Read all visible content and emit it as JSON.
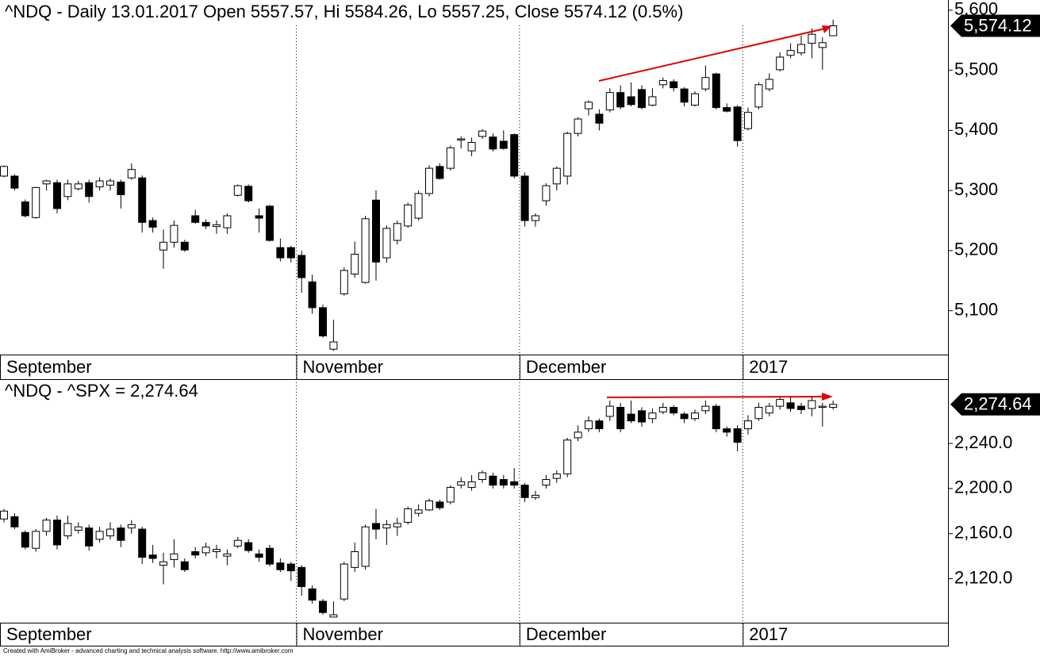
{
  "chart_data": [
    {
      "type": "candlestick",
      "title": "^NDQ - Daily 13.01.2017 Open 5557.57, Hi 5584.26, Lo 5557.25, Close 5574.12 (0.5%)",
      "last_label": "5,574.12",
      "categories": [
        "September",
        null,
        null,
        null,
        null,
        null,
        null,
        null,
        null,
        null,
        null,
        null,
        null,
        null,
        null,
        null,
        null,
        null,
        null,
        null,
        null,
        null,
        null,
        null,
        null,
        null,
        null,
        null,
        "November",
        null,
        null,
        null,
        null,
        null,
        null,
        null,
        null,
        null,
        null,
        null,
        null,
        null,
        null,
        null,
        null,
        null,
        null,
        null,
        null,
        "December",
        null,
        null,
        null,
        null,
        null,
        null,
        null,
        null,
        null,
        null,
        null,
        null,
        null,
        null,
        null,
        null,
        null,
        null,
        null,
        null,
        "2017",
        null,
        null,
        null,
        null,
        null,
        null,
        null,
        null
      ],
      "open": [
        5324,
        5324,
        5281,
        5255,
        5311,
        5313,
        5290,
        5303,
        5313,
        5306,
        5309,
        5314,
        5321,
        5321,
        5250,
        5201,
        5214,
        5214,
        5258,
        5247,
        5240,
        5238,
        5292,
        5307,
        5258,
        5274,
        5205,
        5205,
        5192,
        5148,
        5105,
        5036,
        5128,
        5161,
        5147,
        5284,
        5188,
        5217,
        5241,
        5254,
        5295,
        5340,
        5337,
        5384,
        5366,
        5390,
        5389,
        5382,
        5393,
        5324,
        5250,
        5283,
        5311,
        5324,
        5395,
        5436,
        5427,
        5434,
        5463,
        5456,
        5468,
        5442,
        5476,
        5481,
        5469,
        5442,
        5469,
        5494,
        5438,
        5439,
        5403,
        5439,
        5469,
        5501,
        5525,
        5529,
        5545,
        5538,
        5557.57
      ],
      "high": [
        5342,
        5327,
        5285,
        5306,
        5318,
        5318,
        5318,
        5316,
        5318,
        5322,
        5320,
        5318,
        5345,
        5325,
        5255,
        5235,
        5250,
        5218,
        5268,
        5252,
        5250,
        5262,
        5310,
        5310,
        5270,
        5276,
        5220,
        5208,
        5200,
        5160,
        5110,
        5085,
        5172,
        5215,
        5258,
        5300,
        5242,
        5250,
        5280,
        5300,
        5342,
        5345,
        5375,
        5390,
        5388,
        5402,
        5395,
        5400,
        5395,
        5330,
        5262,
        5312,
        5340,
        5398,
        5422,
        5450,
        5435,
        5470,
        5475,
        5480,
        5475,
        5470,
        5488,
        5485,
        5472,
        5465,
        5508,
        5496,
        5445,
        5442,
        5438,
        5480,
        5495,
        5530,
        5545,
        5558,
        5570,
        5555,
        5584.26
      ],
      "low": [
        5322,
        5300,
        5255,
        5253,
        5300,
        5262,
        5284,
        5300,
        5280,
        5300,
        5300,
        5270,
        5318,
        5230,
        5230,
        5170,
        5205,
        5198,
        5245,
        5236,
        5228,
        5228,
        5290,
        5280,
        5230,
        5215,
        5182,
        5180,
        5130,
        5095,
        5055,
        5033,
        5125,
        5155,
        5145,
        5150,
        5180,
        5210,
        5238,
        5250,
        5290,
        5318,
        5333,
        5370,
        5357,
        5386,
        5365,
        5368,
        5320,
        5240,
        5240,
        5275,
        5300,
        5310,
        5390,
        5425,
        5400,
        5430,
        5435,
        5440,
        5435,
        5440,
        5470,
        5465,
        5440,
        5440,
        5465,
        5435,
        5430,
        5373,
        5400,
        5435,
        5465,
        5498,
        5520,
        5525,
        5520,
        5501,
        5557.25
      ],
      "close": [
        5340,
        5304,
        5258,
        5305,
        5316,
        5270,
        5311,
        5311,
        5290,
        5316,
        5316,
        5293,
        5335,
        5247,
        5239,
        5214,
        5242,
        5201,
        5247,
        5241,
        5243,
        5258,
        5308,
        5283,
        5254,
        5217,
        5188,
        5188,
        5155,
        5105,
        5058,
        5048,
        5167,
        5194,
        5253,
        5181,
        5237,
        5245,
        5276,
        5295,
        5337,
        5320,
        5371,
        5386,
        5380,
        5399,
        5369,
        5370,
        5324,
        5250,
        5258,
        5308,
        5337,
        5395,
        5419,
        5447,
        5412,
        5463,
        5439,
        5443,
        5438,
        5456,
        5483,
        5471,
        5447,
        5461,
        5488,
        5438,
        5432,
        5383,
        5430,
        5476,
        5485,
        5522,
        5533,
        5543,
        5560,
        5546,
        5574.12
      ],
      "up_color": "#ffffff",
      "down_color": "#000000",
      "ylim": [
        5027,
        5617
      ],
      "yticks": [
        {
          "value": 5600,
          "label": "5,600"
        },
        {
          "value": 5500,
          "label": "5,500"
        },
        {
          "value": 5400,
          "label": "5,400"
        },
        {
          "value": 5300,
          "label": "5,300"
        },
        {
          "value": 5200,
          "label": "5,200"
        },
        {
          "value": 5100,
          "label": "5,100"
        }
      ]
    },
    {
      "type": "candlestick",
      "title": "^NDQ - ^SPX = 2,274.64",
      "last_label": "2,274.64",
      "categories": [
        "September",
        null,
        null,
        null,
        null,
        null,
        null,
        null,
        null,
        null,
        null,
        null,
        null,
        null,
        null,
        null,
        null,
        null,
        null,
        null,
        null,
        null,
        null,
        null,
        null,
        null,
        null,
        null,
        "November",
        null,
        null,
        null,
        null,
        null,
        null,
        null,
        null,
        null,
        null,
        null,
        null,
        null,
        null,
        null,
        null,
        null,
        null,
        null,
        null,
        "December",
        null,
        null,
        null,
        null,
        null,
        null,
        null,
        null,
        null,
        null,
        null,
        null,
        null,
        null,
        null,
        null,
        null,
        null,
        null,
        null,
        "2017",
        null,
        null,
        null,
        null,
        null,
        null,
        null,
        null
      ],
      "open": [
        2173,
        2175,
        2161,
        2147,
        2162,
        2172,
        2158,
        2163,
        2165,
        2155,
        2158,
        2165,
        2165,
        2164,
        2141,
        2132,
        2137,
        2135,
        2144,
        2143,
        2144,
        2140,
        2149,
        2152,
        2142,
        2147,
        2134,
        2133,
        2130,
        2111,
        2100,
        2086,
        2102,
        2130,
        2131,
        2169,
        2165,
        2166,
        2170,
        2178,
        2181,
        2188,
        2188,
        2203,
        2201,
        2208,
        2211,
        2208,
        2206,
        2203,
        2192,
        2203,
        2209,
        2213,
        2245,
        2253,
        2260,
        2264,
        2272,
        2266,
        2269,
        2262,
        2268,
        2272,
        2266,
        2262,
        2269,
        2273,
        2253,
        2253,
        2253,
        2262,
        2267,
        2273,
        2276,
        2273,
        2271,
        2272,
        2272
      ],
      "high": [
        2182,
        2178,
        2163,
        2164,
        2174,
        2176,
        2176,
        2170,
        2168,
        2166,
        2170,
        2168,
        2172,
        2166,
        2150,
        2143,
        2155,
        2138,
        2148,
        2152,
        2150,
        2146,
        2157,
        2155,
        2146,
        2150,
        2138,
        2135,
        2132,
        2114,
        2102,
        2100,
        2135,
        2152,
        2168,
        2182,
        2172,
        2174,
        2184,
        2186,
        2191,
        2190,
        2203,
        2210,
        2212,
        2216,
        2214,
        2212,
        2218,
        2205,
        2198,
        2212,
        2216,
        2245,
        2256,
        2264,
        2262,
        2278,
        2276,
        2278,
        2272,
        2271,
        2276,
        2274,
        2268,
        2270,
        2278,
        2275,
        2255,
        2256,
        2265,
        2276,
        2276,
        2282,
        2282,
        2276,
        2282,
        2276,
        2278
      ],
      "low": [
        2170,
        2164,
        2146,
        2144,
        2158,
        2146,
        2155,
        2160,
        2145,
        2152,
        2155,
        2148,
        2160,
        2133,
        2134,
        2115,
        2130,
        2126,
        2138,
        2140,
        2138,
        2132,
        2147,
        2143,
        2135,
        2131,
        2126,
        2118,
        2105,
        2098,
        2088,
        2086,
        2100,
        2126,
        2128,
        2155,
        2150,
        2158,
        2168,
        2175,
        2180,
        2181,
        2186,
        2200,
        2198,
        2205,
        2200,
        2200,
        2200,
        2188,
        2190,
        2200,
        2205,
        2210,
        2242,
        2250,
        2250,
        2260,
        2250,
        2258,
        2255,
        2258,
        2266,
        2265,
        2258,
        2260,
        2266,
        2250,
        2246,
        2233,
        2248,
        2260,
        2264,
        2270,
        2268,
        2266,
        2264,
        2255,
        2270
      ],
      "close": [
        2180,
        2166,
        2148,
        2162,
        2172,
        2150,
        2169,
        2166,
        2149,
        2162,
        2164,
        2154,
        2168,
        2139,
        2138,
        2135,
        2142,
        2128,
        2141,
        2148,
        2146,
        2142,
        2154,
        2145,
        2139,
        2133,
        2128,
        2127,
        2113,
        2101,
        2090,
        2088,
        2133,
        2144,
        2166,
        2164,
        2168,
        2169,
        2182,
        2181,
        2189,
        2183,
        2201,
        2206,
        2206,
        2214,
        2203,
        2203,
        2203,
        2192,
        2194,
        2208,
        2213,
        2243,
        2250,
        2260,
        2253,
        2273,
        2253,
        2260,
        2259,
        2267,
        2272,
        2267,
        2262,
        2267,
        2273,
        2253,
        2250,
        2241,
        2260,
        2272,
        2273,
        2279,
        2271,
        2270,
        2278,
        2273,
        2274.64
      ],
      "up_color": "#ffffff",
      "down_color": "#000000",
      "ylim": [
        2081,
        2297
      ],
      "yticks": [
        {
          "value": 2240,
          "label": "2,240.0"
        },
        {
          "value": 2200,
          "label": "2,200.0"
        },
        {
          "value": 2160,
          "label": "2,160.0"
        },
        {
          "value": 2120,
          "label": "2,120.0"
        }
      ]
    }
  ],
  "footer": "Created with AmiBroker - advanced charting and technical analysis software. http://www.amibroker.com"
}
